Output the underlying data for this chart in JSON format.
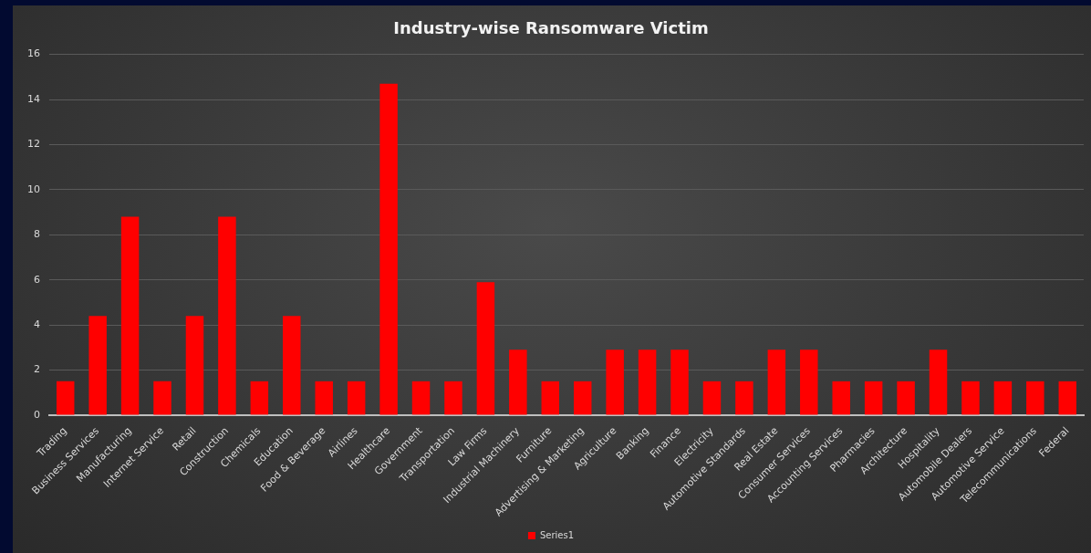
{
  "chart_data": {
    "type": "bar",
    "title": "Industry-wise Ransomware Victim",
    "categories": [
      "Trading",
      "Business Services",
      "Manufacturing",
      "Internet Service",
      "Retail",
      "Construction",
      "Chemicals",
      "Education",
      "Food & Beverage",
      "Airlines",
      "Healthcare",
      "Government",
      "Transportation",
      "Law Firms",
      "Industrial Machinery",
      "Furniture",
      "Advertising & Marketing",
      "Agriculture",
      "Banking",
      "Finance",
      "Electricity",
      "Automotive Standards",
      "Real Estate",
      "Consumer Services",
      "Accounting Services",
      "Pharmacies",
      "Architecture",
      "Hospitality",
      "Automobile Dealers",
      "Automotive Service",
      "Telecommunications",
      "Federal"
    ],
    "series": [
      {
        "name": "Series1",
        "color": "#ff0000",
        "values": [
          1.5,
          4.4,
          8.8,
          1.5,
          4.4,
          8.8,
          1.5,
          4.4,
          1.5,
          1.5,
          14.7,
          1.5,
          1.5,
          5.9,
          2.9,
          1.5,
          1.5,
          2.9,
          2.9,
          2.9,
          1.5,
          1.5,
          2.9,
          2.9,
          1.5,
          1.5,
          1.5,
          2.9,
          1.5,
          1.5,
          1.5,
          1.5
        ]
      }
    ],
    "ylim": [
      0,
      16
    ],
    "yticks": [
      0,
      2,
      4,
      6,
      8,
      10,
      12,
      14,
      16
    ],
    "grid": "y",
    "legend": "bottom"
  }
}
